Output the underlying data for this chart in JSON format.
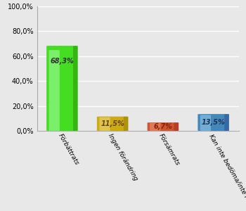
{
  "categories": [
    "Förbättrats",
    "Ingen förändring",
    "Försämrats",
    "Kan inte bedöma/inte relevant"
  ],
  "values": [
    68.3,
    11.5,
    6.7,
    13.5
  ],
  "bar_colors": [
    "#44dd22",
    "#ccaa11",
    "#cc5533",
    "#4488bb"
  ],
  "bar_highlight": [
    "#aaffaa",
    "#eedd88",
    "#ee9977",
    "#99ccee"
  ],
  "bar_shadow": [
    "#228800",
    "#887700",
    "#992211",
    "#224488"
  ],
  "label_colors": [
    "#333333",
    "#664400",
    "#882200",
    "#223355"
  ],
  "ylim": [
    0,
    100
  ],
  "yticks": [
    0,
    20,
    40,
    60,
    80,
    100
  ],
  "ytick_labels": [
    "0,0%",
    "20,0%",
    "40,0%",
    "60,0%",
    "80,0%",
    "100,0%"
  ],
  "background_color": "#e8e8e8",
  "plot_bg_color": "#e8e8e8",
  "grid_color": "#ffffff",
  "label_fontsize": 6.5,
  "value_fontsize": 7
}
